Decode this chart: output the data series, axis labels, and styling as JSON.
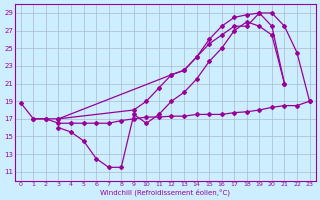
{
  "xlabel": "Windchill (Refroidissement éolien,°C)",
  "background_color": "#cceeff",
  "grid_color": "#aabbcc",
  "line_color": "#990099",
  "ylim": [
    10,
    30
  ],
  "xlim": [
    -0.5,
    23.5
  ],
  "yticks": [
    11,
    13,
    15,
    17,
    19,
    21,
    23,
    25,
    27,
    29
  ],
  "xticks": [
    0,
    1,
    2,
    3,
    4,
    5,
    6,
    7,
    8,
    9,
    10,
    11,
    12,
    13,
    14,
    15,
    16,
    17,
    18,
    19,
    20,
    21,
    22,
    23
  ],
  "curve1_x": [
    0,
    1,
    2,
    3,
    12,
    13,
    14,
    15,
    16,
    17,
    18,
    19,
    20,
    21,
    22,
    23
  ],
  "curve1_y": [
    18.8,
    17.0,
    17.0,
    17.0,
    22.0,
    22.5,
    24.0,
    26.0,
    27.5,
    28.5,
    28.8,
    29.0,
    29.0,
    27.5,
    24.5,
    19.0
  ],
  "curve2_x": [
    3,
    4,
    5,
    6,
    7,
    8,
    9,
    10,
    11,
    12,
    13,
    14,
    15,
    16,
    17,
    18,
    19,
    20,
    21
  ],
  "curve2_y": [
    16.0,
    15.5,
    14.5,
    12.5,
    11.5,
    11.5,
    17.5,
    16.5,
    17.5,
    19.0,
    20.0,
    21.5,
    23.5,
    25.0,
    27.0,
    28.0,
    27.5,
    26.5,
    21.0
  ],
  "curve3_x": [
    3,
    9,
    10,
    11,
    12,
    13,
    14,
    15,
    16,
    17,
    18,
    19,
    20,
    21
  ],
  "curve3_y": [
    17.0,
    18.0,
    19.0,
    20.5,
    22.0,
    22.5,
    24.0,
    25.5,
    26.5,
    27.5,
    27.5,
    29.0,
    27.5,
    21.0
  ],
  "curve4_x": [
    1,
    2,
    3,
    4,
    5,
    6,
    7,
    8,
    9,
    10,
    11,
    12,
    13,
    14,
    15,
    16,
    17,
    18,
    19,
    20,
    21,
    22,
    23
  ],
  "curve4_y": [
    17.0,
    17.0,
    16.5,
    16.5,
    16.5,
    16.5,
    16.5,
    16.8,
    17.0,
    17.2,
    17.2,
    17.3,
    17.3,
    17.5,
    17.5,
    17.5,
    17.7,
    17.8,
    18.0,
    18.3,
    18.5,
    18.5,
    19.0
  ]
}
